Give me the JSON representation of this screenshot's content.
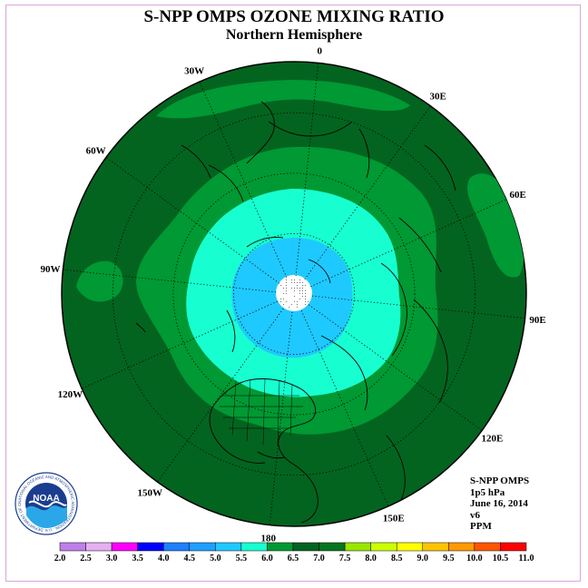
{
  "header": {
    "title": "S-NPP OMPS OZONE MIXING RATIO",
    "subtitle": "Northern Hemisphere"
  },
  "map": {
    "projection": "north-polar-stereographic",
    "fill_levels": [
      {
        "name": "dark-green",
        "color": "#03641f"
      },
      {
        "name": "mid-green",
        "color": "#009933"
      },
      {
        "name": "aqua",
        "color": "#17ffd0"
      },
      {
        "name": "light-blue",
        "color": "#1ec9ff"
      },
      {
        "name": "center",
        "color": "#ffffff"
      }
    ],
    "longitude_labels": [
      {
        "label": "90E",
        "lon": 90
      },
      {
        "label": "60E",
        "lon": 60
      },
      {
        "label": "30E",
        "lon": 30
      },
      {
        "label": "0",
        "lon": 0
      },
      {
        "label": "30W",
        "lon": -30
      },
      {
        "label": "60W",
        "lon": -60
      },
      {
        "label": "90W",
        "lon": -90
      },
      {
        "label": "120W",
        "lon": -120
      },
      {
        "label": "150W",
        "lon": -150
      },
      {
        "label": "180",
        "lon": 180
      },
      {
        "label": "150E",
        "lon": 150
      },
      {
        "label": "120E",
        "lon": 120
      }
    ]
  },
  "info": {
    "instrument": "S-NPP OMPS",
    "level": "1p5 hPa",
    "date": "June 16, 2014",
    "version": "v6",
    "units": "PPM"
  },
  "logo": {
    "icon": "noaa-logo-icon",
    "text": "NOAA",
    "ring_text": "NATIONAL OCEANIC AND ATMOSPHERIC ADMINISTRATION · U.S. DEPARTMENT OF COMMERCE"
  },
  "colorbar": {
    "ticks": [
      "2.0",
      "2.5",
      "3.0",
      "3.5",
      "4.0",
      "4.5",
      "5.0",
      "5.5",
      "6.0",
      "6.5",
      "7.0",
      "7.5",
      "8.0",
      "8.5",
      "9.0",
      "9.5",
      "10.0",
      "10.5",
      "11.0"
    ],
    "colors": [
      "#bf7fe8",
      "#e3b0f2",
      "#ff00ff",
      "#0000ff",
      "#1e7fff",
      "#1e9fff",
      "#1ec9ff",
      "#17ffd0",
      "#009933",
      "#03641f",
      "#04761f",
      "#99e600",
      "#ccff00",
      "#ffff00",
      "#ffc400",
      "#ff9900",
      "#ff5500",
      "#ff0000",
      "#804020"
    ]
  }
}
